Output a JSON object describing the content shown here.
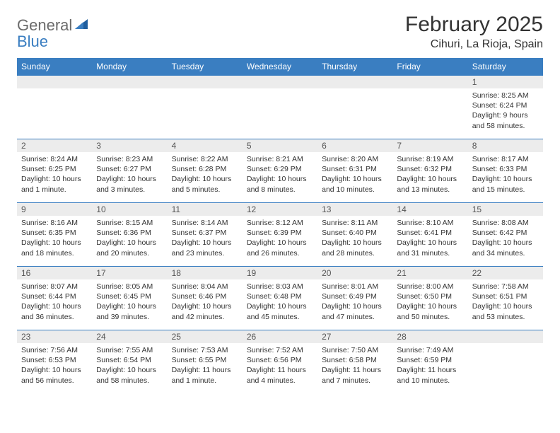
{
  "brand": {
    "line1": "General",
    "line2": "Blue"
  },
  "title": "February 2025",
  "location": "Cihuri, La Rioja, Spain",
  "colors": {
    "header_bg": "#3a7ec1",
    "header_fg": "#ffffff",
    "daynum_bg": "#ececec",
    "border": "#3a7ec1",
    "text": "#333333",
    "logo_gray": "#6b6b6b",
    "logo_blue": "#3a7ec1",
    "background": "#ffffff"
  },
  "weekdays": [
    "Sunday",
    "Monday",
    "Tuesday",
    "Wednesday",
    "Thursday",
    "Friday",
    "Saturday"
  ],
  "weeks": [
    [
      null,
      null,
      null,
      null,
      null,
      null,
      {
        "n": "1",
        "sr": "8:25 AM",
        "ss": "6:24 PM",
        "dl": "9 hours and 58 minutes."
      }
    ],
    [
      {
        "n": "2",
        "sr": "8:24 AM",
        "ss": "6:25 PM",
        "dl": "10 hours and 1 minute."
      },
      {
        "n": "3",
        "sr": "8:23 AM",
        "ss": "6:27 PM",
        "dl": "10 hours and 3 minutes."
      },
      {
        "n": "4",
        "sr": "8:22 AM",
        "ss": "6:28 PM",
        "dl": "10 hours and 5 minutes."
      },
      {
        "n": "5",
        "sr": "8:21 AM",
        "ss": "6:29 PM",
        "dl": "10 hours and 8 minutes."
      },
      {
        "n": "6",
        "sr": "8:20 AM",
        "ss": "6:31 PM",
        "dl": "10 hours and 10 minutes."
      },
      {
        "n": "7",
        "sr": "8:19 AM",
        "ss": "6:32 PM",
        "dl": "10 hours and 13 minutes."
      },
      {
        "n": "8",
        "sr": "8:17 AM",
        "ss": "6:33 PM",
        "dl": "10 hours and 15 minutes."
      }
    ],
    [
      {
        "n": "9",
        "sr": "8:16 AM",
        "ss": "6:35 PM",
        "dl": "10 hours and 18 minutes."
      },
      {
        "n": "10",
        "sr": "8:15 AM",
        "ss": "6:36 PM",
        "dl": "10 hours and 20 minutes."
      },
      {
        "n": "11",
        "sr": "8:14 AM",
        "ss": "6:37 PM",
        "dl": "10 hours and 23 minutes."
      },
      {
        "n": "12",
        "sr": "8:12 AM",
        "ss": "6:39 PM",
        "dl": "10 hours and 26 minutes."
      },
      {
        "n": "13",
        "sr": "8:11 AM",
        "ss": "6:40 PM",
        "dl": "10 hours and 28 minutes."
      },
      {
        "n": "14",
        "sr": "8:10 AM",
        "ss": "6:41 PM",
        "dl": "10 hours and 31 minutes."
      },
      {
        "n": "15",
        "sr": "8:08 AM",
        "ss": "6:42 PM",
        "dl": "10 hours and 34 minutes."
      }
    ],
    [
      {
        "n": "16",
        "sr": "8:07 AM",
        "ss": "6:44 PM",
        "dl": "10 hours and 36 minutes."
      },
      {
        "n": "17",
        "sr": "8:05 AM",
        "ss": "6:45 PM",
        "dl": "10 hours and 39 minutes."
      },
      {
        "n": "18",
        "sr": "8:04 AM",
        "ss": "6:46 PM",
        "dl": "10 hours and 42 minutes."
      },
      {
        "n": "19",
        "sr": "8:03 AM",
        "ss": "6:48 PM",
        "dl": "10 hours and 45 minutes."
      },
      {
        "n": "20",
        "sr": "8:01 AM",
        "ss": "6:49 PM",
        "dl": "10 hours and 47 minutes."
      },
      {
        "n": "21",
        "sr": "8:00 AM",
        "ss": "6:50 PM",
        "dl": "10 hours and 50 minutes."
      },
      {
        "n": "22",
        "sr": "7:58 AM",
        "ss": "6:51 PM",
        "dl": "10 hours and 53 minutes."
      }
    ],
    [
      {
        "n": "23",
        "sr": "7:56 AM",
        "ss": "6:53 PM",
        "dl": "10 hours and 56 minutes."
      },
      {
        "n": "24",
        "sr": "7:55 AM",
        "ss": "6:54 PM",
        "dl": "10 hours and 58 minutes."
      },
      {
        "n": "25",
        "sr": "7:53 AM",
        "ss": "6:55 PM",
        "dl": "11 hours and 1 minute."
      },
      {
        "n": "26",
        "sr": "7:52 AM",
        "ss": "6:56 PM",
        "dl": "11 hours and 4 minutes."
      },
      {
        "n": "27",
        "sr": "7:50 AM",
        "ss": "6:58 PM",
        "dl": "11 hours and 7 minutes."
      },
      {
        "n": "28",
        "sr": "7:49 AM",
        "ss": "6:59 PM",
        "dl": "11 hours and 10 minutes."
      },
      null
    ]
  ],
  "labels": {
    "sunrise": "Sunrise: ",
    "sunset": "Sunset: ",
    "daylight": "Daylight: "
  }
}
